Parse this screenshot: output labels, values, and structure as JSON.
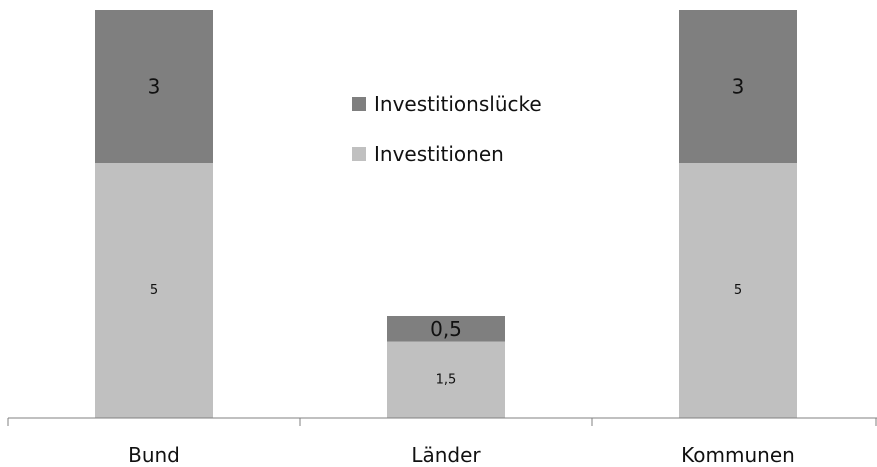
{
  "chart_data": {
    "type": "bar",
    "stacked": true,
    "categories": [
      "Bund",
      "Länder",
      "Kommunen"
    ],
    "series": [
      {
        "name": "Investitionen",
        "values": [
          5,
          1.5,
          5
        ],
        "labels": [
          "5",
          "1,5",
          "5"
        ],
        "color": "#c0c0c0"
      },
      {
        "name": "Investitionslücke",
        "values": [
          3,
          0.5,
          3
        ],
        "labels": [
          "3",
          "0,5",
          "3"
        ],
        "color": "#7f7f7f"
      }
    ],
    "legend": {
      "position": "top-center",
      "entries": [
        "Investitionslücke",
        "Investitionen"
      ]
    },
    "axis_color": "#808080",
    "grid": false
  }
}
